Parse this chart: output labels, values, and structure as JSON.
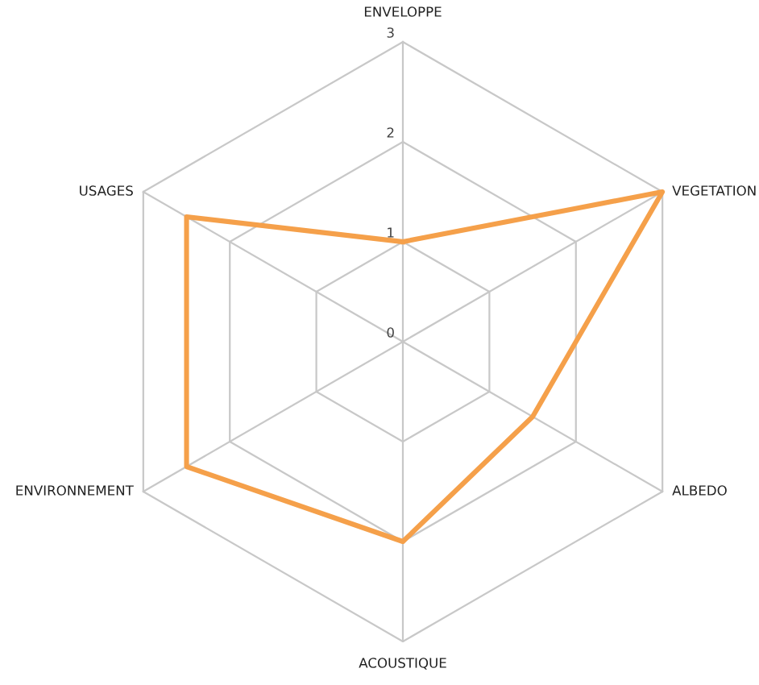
{
  "chart_data": {
    "type": "radar",
    "categories": [
      "ENVELOPPE",
      "VEGETATION",
      "ALBEDO",
      "ACOUSTIQUE",
      "ENVIRONNEMENT",
      "USAGES"
    ],
    "series": [
      {
        "color": "#f5a04a",
        "values": [
          1,
          3,
          1.5,
          2,
          2.5,
          2.5
        ]
      }
    ],
    "ylim": [
      0,
      3
    ],
    "yticks": [
      0,
      1,
      2,
      3
    ],
    "marker": "none",
    "line_style": "solid"
  }
}
